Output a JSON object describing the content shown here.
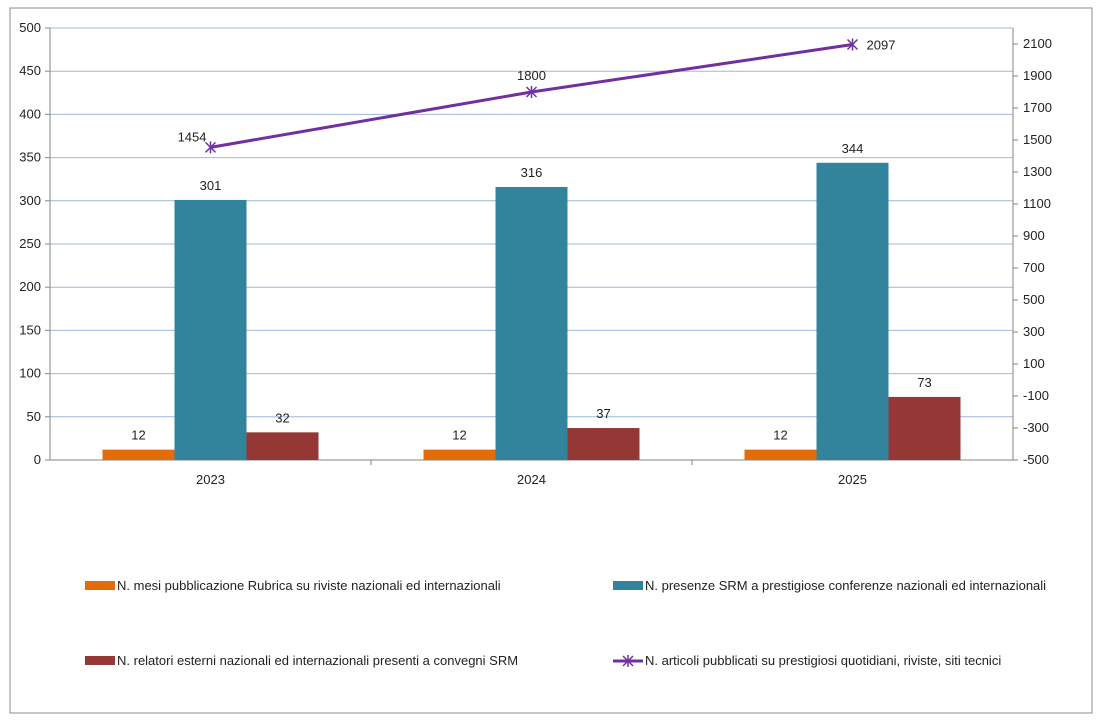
{
  "chart_data": {
    "type": "bar",
    "categories": [
      "2023",
      "2024",
      "2025"
    ],
    "series": [
      {
        "name": "N. mesi pubblicazione Rubrica su riviste nazionali ed internazionali",
        "kind": "bar",
        "axis": "left",
        "color": "#e36c0a",
        "values": [
          12,
          12,
          12
        ],
        "labels": [
          "12",
          "12",
          "12"
        ]
      },
      {
        "name": "N. presenze SRM a prestigiose conferenze nazionali ed internazionali",
        "kind": "bar",
        "axis": "left",
        "color": "#31849b",
        "values": [
          301,
          316,
          344
        ],
        "labels": [
          "301",
          "316",
          "344"
        ]
      },
      {
        "name": "N. relatori esterni nazionali ed internazionali presenti a convegni SRM",
        "kind": "bar",
        "axis": "left",
        "color": "#953735",
        "values": [
          32,
          37,
          73
        ],
        "labels": [
          "32",
          "37",
          "73"
        ]
      },
      {
        "name": "N. articoli pubblicati su prestigiosi quotidiani, riviste, siti tecnici",
        "kind": "line",
        "axis": "right",
        "color": "#7030a0",
        "marker": "star",
        "values": [
          1454,
          1800,
          2097
        ],
        "labels": [
          "1454",
          "1800",
          "2097"
        ]
      }
    ],
    "y_left": {
      "lim": [
        0,
        500
      ],
      "ticks": [
        "0",
        "50",
        "100",
        "150",
        "200",
        "250",
        "300",
        "350",
        "400",
        "450",
        "500"
      ]
    },
    "y_right": {
      "lim": [
        -500,
        2200
      ],
      "ticks": [
        "-500",
        "-300",
        "-100",
        "100",
        "300",
        "500",
        "700",
        "900",
        "1100",
        "1300",
        "1500",
        "1700",
        "1900",
        "2100"
      ]
    },
    "grid": true,
    "legend_position": "bottom",
    "gridline_color": "#9fb8d8",
    "title": "",
    "xlabel": "",
    "ylabel": ""
  }
}
